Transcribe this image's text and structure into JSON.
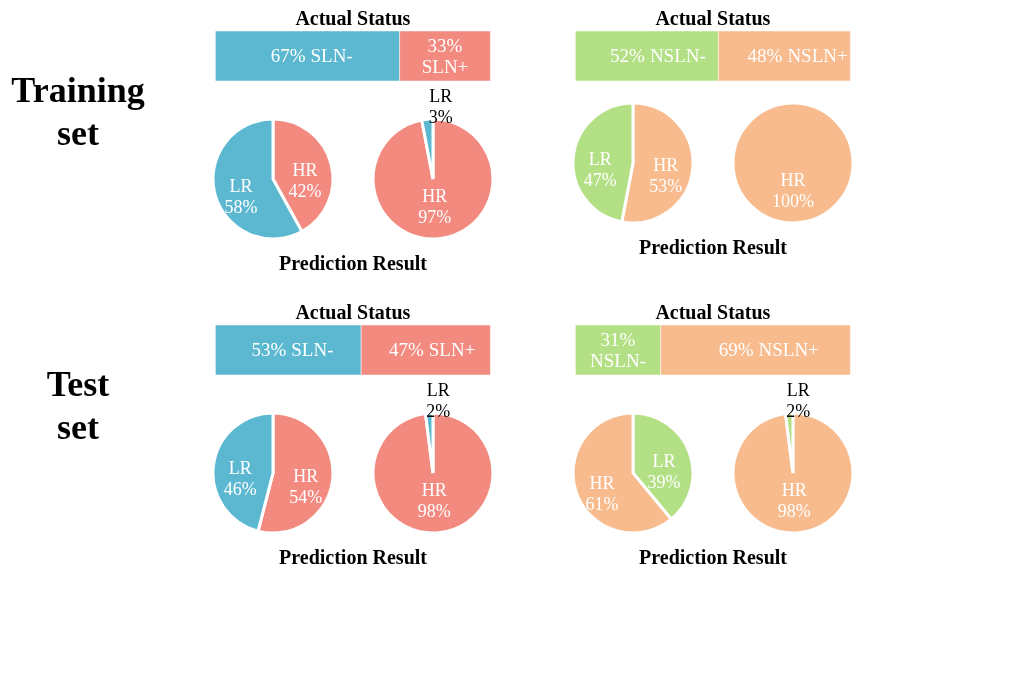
{
  "chart_data": [
    {
      "type": "bar",
      "orientation": "horizontal",
      "stacked": true,
      "title": "Actual Status",
      "annotations": [
        "Training\nset"
      ],
      "categories": [
        null
      ],
      "series": [
        {
          "name": "SLN-",
          "color": "#5bb8d0",
          "values": [
            67
          ],
          "value_labels": [
            "67%"
          ]
        },
        {
          "name": "SLN+",
          "color": "#f28a80",
          "values": [
            33
          ],
          "value_labels": [
            "33%"
          ]
        }
      ]
    },
    {
      "type": "pie",
      "categories": [
        "HR",
        "LR"
      ],
      "values": [
        42,
        58
      ],
      "colors": [
        "#f28a80",
        "#5bb8d0"
      ],
      "value_labels": [
        "42%",
        "58%"
      ],
      "annotations": [
        "Prediction Result"
      ]
    },
    {
      "type": "pie",
      "categories": [
        "HR",
        "LR"
      ],
      "values": [
        97,
        3
      ],
      "colors": [
        "#f28a80",
        "#5bb8d0"
      ],
      "value_labels": [
        "97%",
        "3%"
      ]
    },
    {
      "type": "bar",
      "orientation": "horizontal",
      "stacked": true,
      "title": "Actual Status",
      "categories": [
        null
      ],
      "series": [
        {
          "name": "NSLN-",
          "color": "#b3e084",
          "values": [
            52
          ],
          "value_labels": [
            "52%"
          ]
        },
        {
          "name": "NSLN+",
          "color": "#f7bb8e",
          "values": [
            48
          ],
          "value_labels": [
            "48%"
          ]
        }
      ]
    },
    {
      "type": "pie",
      "categories": [
        "HR",
        "LR"
      ],
      "values": [
        53,
        47
      ],
      "colors": [
        "#f7bb8e",
        "#b3e084"
      ],
      "value_labels": [
        "53%",
        "47%"
      ],
      "annotations": [
        "Prediction Result"
      ]
    },
    {
      "type": "pie",
      "categories": [
        "HR"
      ],
      "values": [
        100
      ],
      "colors": [
        "#f7bb8e"
      ],
      "value_labels": [
        "100%"
      ]
    },
    {
      "type": "bar",
      "orientation": "horizontal",
      "stacked": true,
      "title": "Actual Status",
      "annotations": [
        "Test\nset"
      ],
      "categories": [
        null
      ],
      "series": [
        {
          "name": "SLN-",
          "color": "#5bb8d0",
          "values": [
            53
          ],
          "value_labels": [
            "53%"
          ]
        },
        {
          "name": "SLN+",
          "color": "#f28a80",
          "values": [
            47
          ],
          "value_labels": [
            "47%"
          ]
        }
      ]
    },
    {
      "type": "pie",
      "categories": [
        "HR",
        "LR"
      ],
      "values": [
        54,
        46
      ],
      "colors": [
        "#f28a80",
        "#5bb8d0"
      ],
      "value_labels": [
        "54%",
        "46%"
      ],
      "annotations": [
        "Prediction Result"
      ]
    },
    {
      "type": "pie",
      "categories": [
        "HR",
        "LR"
      ],
      "values": [
        98,
        2
      ],
      "colors": [
        "#f28a80",
        "#5bb8d0"
      ],
      "value_labels": [
        "98%",
        "2%"
      ]
    },
    {
      "type": "bar",
      "orientation": "horizontal",
      "stacked": true,
      "title": "Actual Status",
      "categories": [
        null
      ],
      "series": [
        {
          "name": "NSLN-",
          "color": "#b3e084",
          "values": [
            31
          ],
          "value_labels": [
            "31%"
          ]
        },
        {
          "name": "NSLN+",
          "color": "#f7bb8e",
          "values": [
            69
          ],
          "value_labels": [
            "69%"
          ]
        }
      ]
    },
    {
      "type": "pie",
      "categories": [
        "LR",
        "HR"
      ],
      "values": [
        39,
        61
      ],
      "colors": [
        "#b3e084",
        "#f7bb8e"
      ],
      "value_labels": [
        "39%",
        "61%"
      ],
      "annotations": [
        "Prediction Result"
      ]
    },
    {
      "type": "pie",
      "categories": [
        "HR",
        "LR"
      ],
      "values": [
        98,
        2
      ],
      "colors": [
        "#f7bb8e",
        "#b3e084"
      ],
      "value_labels": [
        "98%",
        "2%"
      ]
    }
  ]
}
